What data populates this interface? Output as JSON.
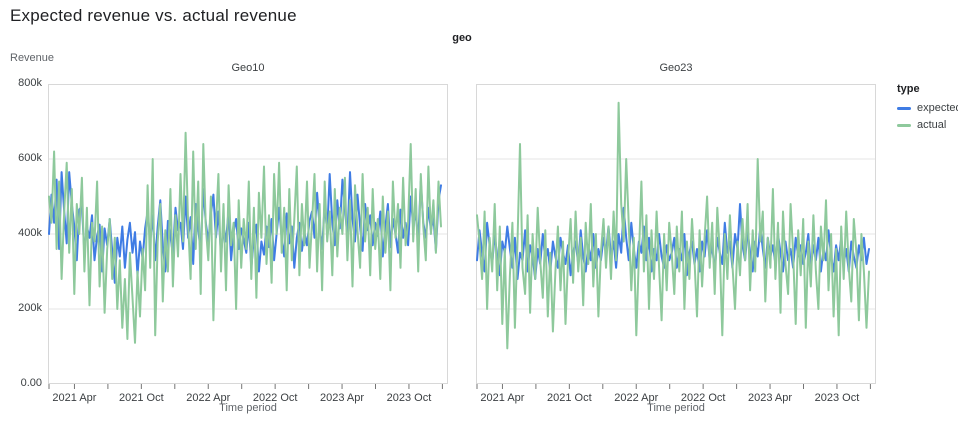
{
  "page": {
    "title": "Expected revenue vs. actual revenue"
  },
  "facet": {
    "label": "geo"
  },
  "axes": {
    "y_title": "Revenue",
    "x_title": "Time period",
    "y_ticks": [
      "800k",
      "600k",
      "400k",
      "200k",
      "0.00"
    ],
    "x_tick_labels": [
      "2021 Apr",
      "2021 Oct",
      "2022 Apr",
      "2022 Oct",
      "2023 Apr",
      "2023 Oct"
    ]
  },
  "legend": {
    "title": "type",
    "items": [
      {
        "label": "expected",
        "color": "#3f7ce4"
      },
      {
        "label": "actual",
        "color": "#8ec99c"
      }
    ]
  },
  "colors": {
    "expected": "#3f7ce4",
    "actual": "#8ec99c",
    "grid": "#e4e4e4",
    "border": "#d8d8d8",
    "tick": "#757575",
    "text": "#3c4043"
  },
  "chart_data": {
    "type": "line",
    "facet_by": "geo",
    "title": "Expected revenue vs. actual revenue",
    "xlabel": "Time period",
    "ylabel": "Revenue",
    "ylim": [
      0,
      800000
    ],
    "y_tick_values_k": [
      0,
      200,
      400,
      600,
      800
    ],
    "x_range": [
      "2021-01",
      "2023-12"
    ],
    "x_resolution": "weekly",
    "x_labeled_months": [
      3,
      9,
      15,
      21,
      27,
      33
    ],
    "x_minor_months": [
      0,
      6,
      12,
      18,
      24,
      30,
      36
    ],
    "legend_position": "right",
    "grid": "horizontal",
    "value_unit": "thousands",
    "panels": [
      {
        "title": "Geo10",
        "series": [
          {
            "name": "expected",
            "values": [
              400,
              505,
              430,
              545,
              360,
              565,
              460,
              375,
              565,
              480,
              420,
              330,
              465,
              475,
              350,
              420,
              390,
              450,
              330,
              395,
              425,
              300,
              415,
              370,
              440,
              355,
              270,
              390,
              340,
              420,
              310,
              385,
              430,
              350,
              405,
              290,
              380,
              335,
              415,
              460,
              380,
              450,
              330,
              420,
              490,
              370,
              300,
              435,
              395,
              345,
              470,
              410,
              430,
              360,
              500,
              390,
              445,
              320,
              480,
              415,
              350,
              520,
              430,
              380,
              455,
              505,
              390,
              460,
              345,
              420,
              380,
              465,
              330,
              405,
              440,
              360,
              415,
              385,
              350,
              430,
              310,
              390,
              425,
              300,
              380,
              345,
              420,
              365,
              440,
              330,
              400,
              470,
              390,
              340,
              455,
              375,
              420,
              310,
              390,
              430,
              355,
              405,
              370,
              435,
              460,
              390,
              510,
              420,
              360,
              480,
              405,
              560,
              430,
              370,
              490,
              415,
              545,
              470,
              390,
              565,
              440,
              380,
              505,
              420,
              355,
              480,
              410,
              450,
              370,
              430,
              395,
              460,
              340,
              420,
              480,
              365,
              440,
              400,
              350,
              465,
              390,
              430,
              370,
              500,
              420,
              460,
              380,
              540,
              430,
              390,
              470,
              410,
              445,
              355,
              490,
              530
            ]
          },
          {
            "name": "actual",
            "values": [
              500,
              430,
              620,
              360,
              540,
              280,
              460,
              590,
              350,
              520,
              240,
              480,
              400,
              550,
              300,
              470,
              210,
              430,
              380,
              540,
              260,
              420,
              190,
              360,
              440,
              280,
              390,
              200,
              330,
              150,
              280,
              120,
              350,
              230,
              110,
              300,
              180,
              360,
              250,
              530,
              310,
              600,
              130,
              380,
              480,
              220,
              410,
              300,
              520,
              260,
              450,
              340,
              560,
              380,
              670,
              430,
              280,
              620,
              360,
              540,
              240,
              640,
              420,
              330,
              500,
              170,
              420,
              560,
              300,
              480,
              250,
              530,
              370,
              430,
              200,
              490,
              310,
              440,
              360,
              540,
              280,
              470,
              230,
              510,
              390,
              580,
              320,
              450,
              270,
              560,
              400,
              590,
              350,
              470,
              250,
              520,
              330,
              440,
              580,
              290,
              480,
              370,
              540,
              310,
              430,
              560,
              300,
              480,
              250,
              540,
              380,
              460,
              290,
              520,
              340,
              470,
              400,
              550,
              330,
              490,
              260,
              530,
              410,
              310,
              560,
              380,
              470,
              290,
              520,
              360,
              440,
              280,
              500,
              350,
              460,
              250,
              540,
              390,
              480,
              310,
              550,
              370,
              430,
              640,
              380,
              520,
              300,
              560,
              420,
              330,
              580,
              400,
              490,
              350,
              540,
              420
            ]
          }
        ]
      },
      {
        "title": "Geo23",
        "series": [
          {
            "name": "expected",
            "values": [
              330,
              410,
              350,
              300,
              430,
              370,
              320,
              400,
              340,
              290,
              380,
              350,
              420,
              360,
              310,
              390,
              280,
              350,
              330,
              410,
              300,
              370,
              340,
              280,
              360,
              320,
              400,
              330,
              360,
              300,
              380,
              340,
              310,
              390,
              350,
              320,
              370,
              290,
              350,
              380,
              320,
              410,
              340,
              300,
              370,
              330,
              400,
              310,
              360,
              330,
              390,
              350,
              420,
              340,
              380,
              310,
              400,
              350,
              470,
              390,
              330,
              430,
              360,
              310,
              380,
              350,
              420,
              330,
              390,
              300,
              360,
              330,
              400,
              340,
              310,
              370,
              330,
              350,
              390,
              310,
              360,
              330,
              400,
              290,
              350,
              380,
              320,
              360,
              300,
              380,
              340,
              410,
              330,
              370,
              300,
              390,
              350,
              320,
              430,
              350,
              380,
              310,
              400,
              360,
              480,
              370,
              330,
              410,
              350,
              300,
              380,
              340,
              420,
              360,
              310,
              390,
              340,
              370,
              320,
              400,
              350,
              300,
              380,
              330,
              360,
              310,
              390,
              340,
              370,
              320,
              350,
              400,
              310,
              370,
              330,
              390,
              300,
              360,
              330,
              410,
              340,
              300,
              370,
              330,
              390,
              320,
              360,
              300,
              380,
              340,
              310,
              370,
              330,
              390,
              320,
              360
            ]
          },
          {
            "name": "actual",
            "values": [
              450,
              380,
              280,
              460,
              200,
              390,
              300,
              480,
              250,
              420,
              160,
              360,
              95,
              290,
              430,
              150,
              380,
              640,
              310,
              240,
              450,
              190,
              400,
              280,
              470,
              330,
              230,
              410,
              180,
              350,
              140,
              300,
              420,
              250,
              380,
              160,
              330,
              440,
              270,
              460,
              300,
              390,
              210,
              430,
              320,
              480,
              260,
              400,
              180,
              350,
              440,
              310,
              420,
              280,
              460,
              330,
              750,
              480,
              380,
              600,
              430,
              250,
              390,
              130,
              340,
              540,
              300,
              450,
              200,
              410,
              280,
              460,
              310,
              170,
              400,
              250,
              430,
              350,
              240,
              420,
              300,
              460,
              200,
              380,
              280,
              440,
              330,
              180,
              410,
              260,
              390,
              500,
              310,
              430,
              240,
              470,
              350,
              130,
              400,
              280,
              450,
              320,
              200,
              380,
              290,
              440,
              330,
              480,
              250,
              410,
              300,
              600,
              380,
              460,
              220,
              390,
              310,
              520,
              280,
              430,
              190,
              460,
              320,
              240,
              480,
              350,
              160,
              410,
              290,
              440,
              150,
              380,
              260,
              450,
              300,
              200,
              420,
              330,
              490,
              250,
              400,
              180,
              360,
              130,
              420,
              280,
              460,
              310,
              220,
              440,
              350,
              170,
              400,
              300,
              150,
              300
            ]
          }
        ]
      }
    ]
  }
}
